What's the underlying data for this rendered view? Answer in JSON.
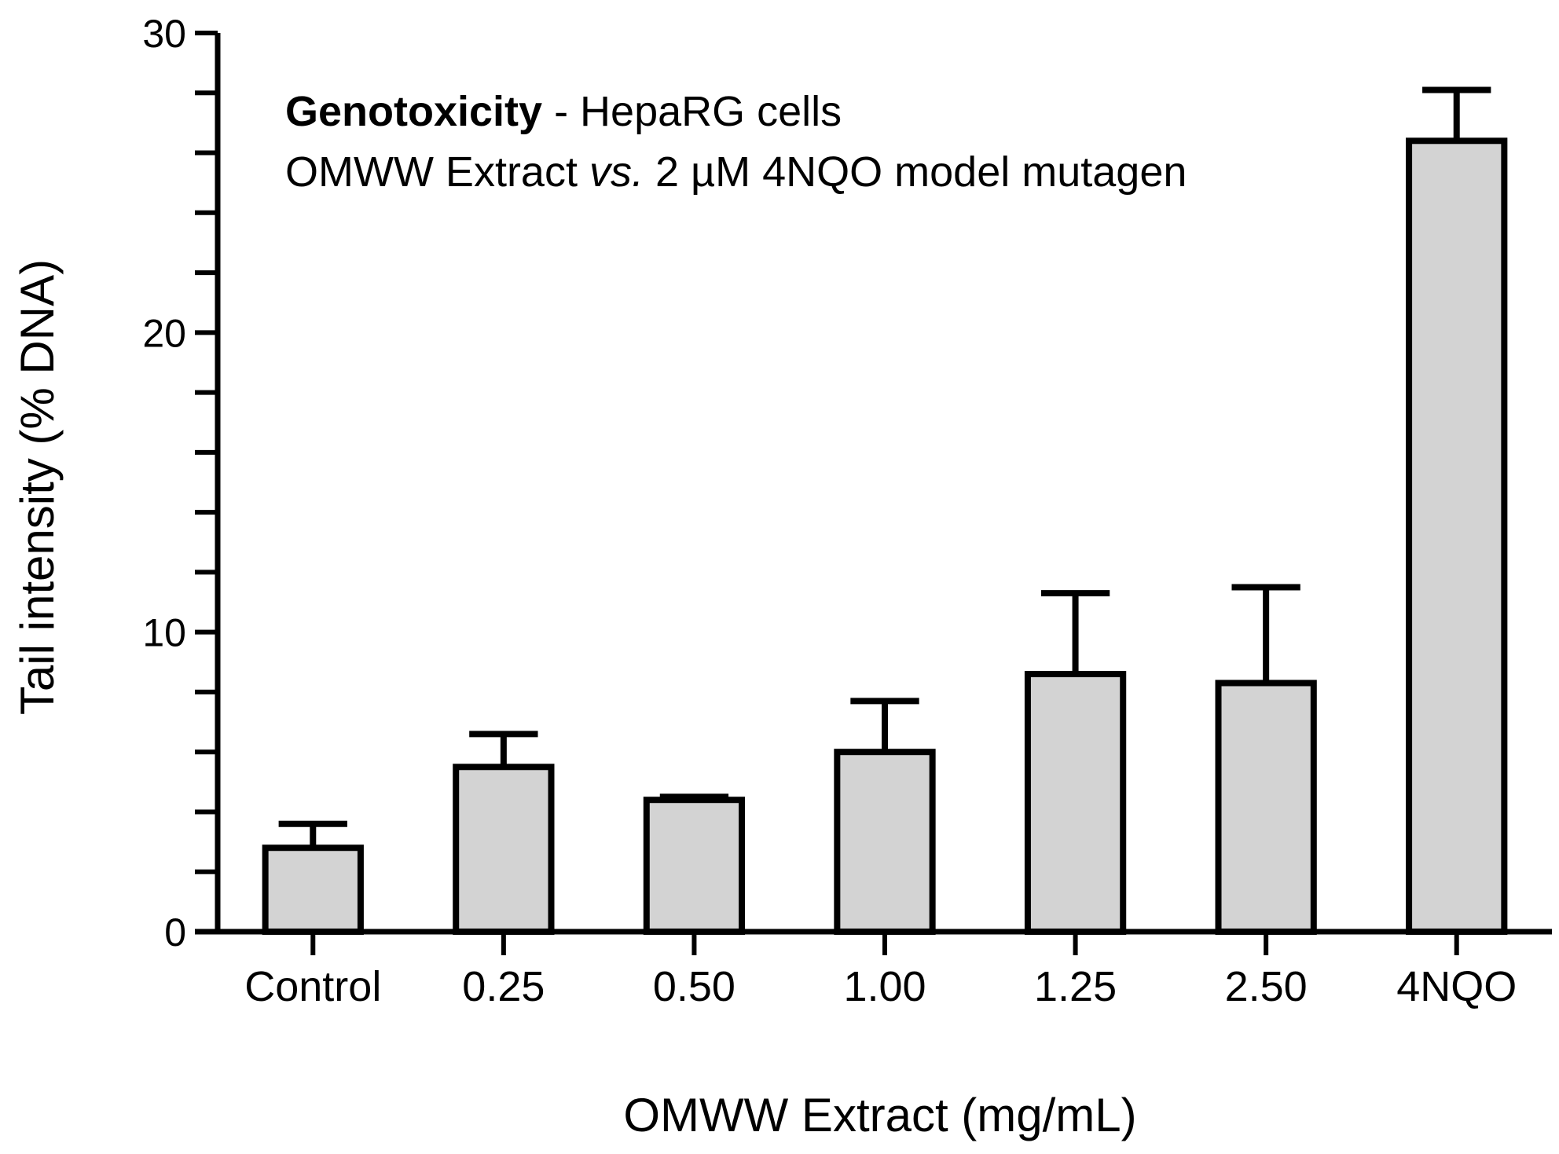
{
  "chart_data": {
    "type": "bar",
    "categories": [
      "Control",
      "0.25",
      "0.50",
      "1.00",
      "1.25",
      "2.50",
      "4NQO"
    ],
    "values": [
      2.8,
      5.5,
      4.4,
      6.0,
      8.6,
      8.3,
      26.4
    ],
    "errors": [
      0.8,
      1.1,
      0.1,
      1.7,
      2.7,
      3.2,
      1.7
    ],
    "xlabel": "OMWW Extract (mg/mL)",
    "ylabel": "Tail intensity (% DNA)",
    "ylim": [
      0,
      30
    ],
    "yticks": [
      0,
      10,
      20,
      30
    ],
    "y_minor_step": 2,
    "annotation": {
      "line1_bold": "Genotoxicity",
      "line1_rest": " - HepaRG cells",
      "line2_a": "OMWW Extract ",
      "line2_italic": "vs.",
      "line2_b": " 2 µM 4NQO model mutagen"
    },
    "bar_color": "#d3d3d3",
    "grid": false,
    "legend": "none"
  }
}
